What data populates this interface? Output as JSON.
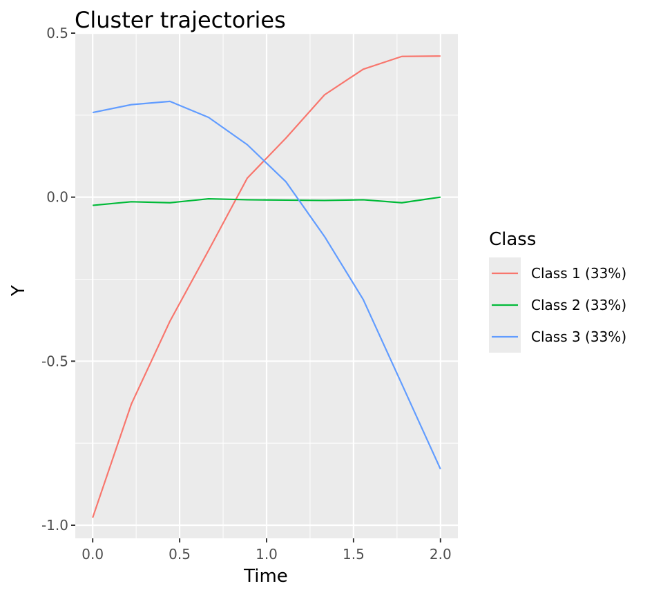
{
  "chart_data": {
    "type": "line",
    "title": "Cluster trajectories",
    "xlabel": "Time",
    "ylabel": "Y",
    "xlim": [
      -0.1,
      2.1
    ],
    "ylim": [
      -1.04,
      0.5
    ],
    "x_ticks": [
      0.0,
      0.5,
      1.0,
      1.5,
      2.0
    ],
    "x_tick_labels": [
      "0.0",
      "0.5",
      "1.0",
      "1.5",
      "2.0"
    ],
    "y_ticks": [
      -1.0,
      -0.5,
      0.0,
      0.5
    ],
    "y_tick_labels": [
      "-1.0",
      "-0.5",
      "0.0",
      "0.5"
    ],
    "grid": true,
    "panel_background": "#ebebeb",
    "legend_position": "right",
    "legend_title": "Class",
    "x": [
      0.0,
      0.2222,
      0.4444,
      0.6667,
      0.8889,
      1.1111,
      1.3333,
      1.5556,
      1.7778,
      2.0
    ],
    "series": [
      {
        "name": "Class 1 (33%)",
        "color": "#F8766D",
        "values": [
          -0.977,
          -0.631,
          -0.378,
          -0.162,
          0.058,
          0.18,
          0.312,
          0.39,
          0.429,
          0.43
        ]
      },
      {
        "name": "Class 2 (33%)",
        "color": "#00BA38",
        "values": [
          -0.025,
          -0.014,
          -0.017,
          -0.005,
          -0.008,
          -0.009,
          -0.01,
          -0.008,
          -0.017,
          0.0
        ]
      },
      {
        "name": "Class 3 (33%)",
        "color": "#619CFF",
        "values": [
          0.258,
          0.282,
          0.292,
          0.243,
          0.16,
          0.047,
          -0.12,
          -0.312,
          -0.57,
          -0.829
        ]
      }
    ]
  }
}
